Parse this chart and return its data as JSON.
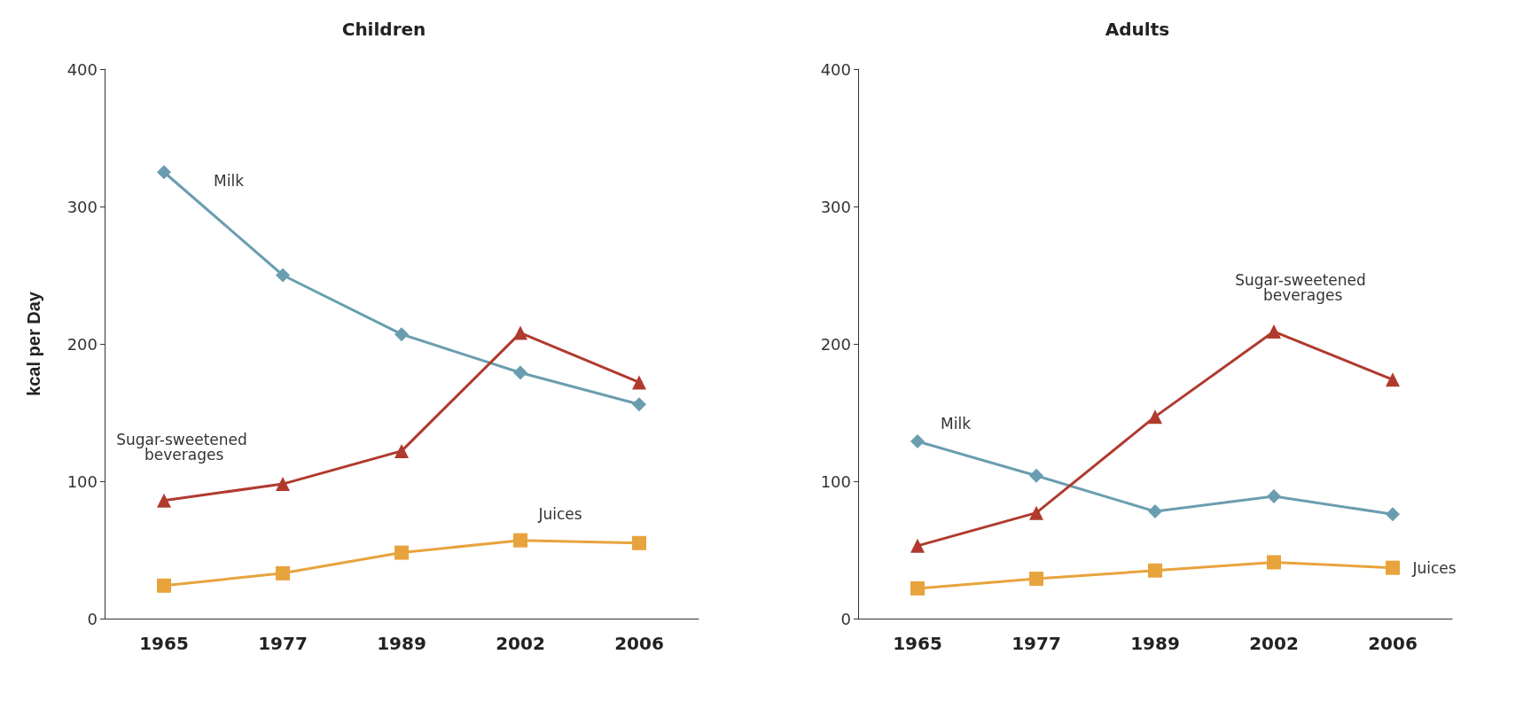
{
  "chart_data": [
    {
      "type": "line",
      "title": "Children",
      "ylabel": "kcal per Day",
      "categories": [
        "1965",
        "1977",
        "1989",
        "2002",
        "2006"
      ],
      "ylim": [
        0,
        400
      ],
      "yticks": [
        0,
        100,
        200,
        300,
        400
      ],
      "grid": false,
      "legend": false,
      "series": [
        {
          "name": "Milk",
          "color": "#6b9db0",
          "marker": "diamond",
          "values": [
            325,
            250,
            207,
            179,
            156
          ]
        },
        {
          "name": "Sugar-sweetened beverages",
          "color": "#b03a2e",
          "marker": "triangle",
          "values": [
            86,
            98,
            122,
            208,
            172
          ]
        },
        {
          "name": "Juices",
          "color": "#e8a33c",
          "marker": "square",
          "values": [
            24,
            33,
            48,
            57,
            55
          ]
        }
      ]
    },
    {
      "type": "line",
      "title": "Adults",
      "categories": [
        "1965",
        "1977",
        "1989",
        "2002",
        "2006"
      ],
      "ylim": [
        0,
        400
      ],
      "yticks": [
        0,
        100,
        200,
        300,
        400
      ],
      "grid": false,
      "legend": false,
      "series": [
        {
          "name": "Milk",
          "color": "#6b9db0",
          "marker": "diamond",
          "values": [
            129,
            104,
            78,
            89,
            76
          ]
        },
        {
          "name": "Sugar-sweetened beverages",
          "color": "#b03a2e",
          "marker": "triangle",
          "values": [
            53,
            77,
            147,
            209,
            174
          ]
        },
        {
          "name": "Juices",
          "color": "#e8a33c",
          "marker": "square",
          "values": [
            22,
            29,
            35,
            41,
            37
          ]
        }
      ]
    }
  ]
}
